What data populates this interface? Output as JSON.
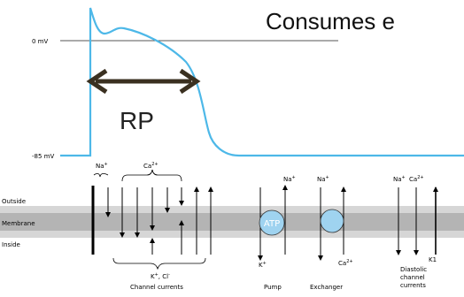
{
  "heading_partial": "Consumes e",
  "voltage_labels": {
    "zero": "0 mV",
    "rest": "-85 mV"
  },
  "refractory_label": "RP",
  "membrane_labels": {
    "outside": "Outside",
    "membrane": "Membrane",
    "inside": "Inside"
  },
  "ions": {
    "na": "Na",
    "ca": "Ca",
    "k": "K",
    "k1": "K1",
    "cl": "Cl",
    "plus": "+",
    "minus": "-",
    "two_plus": "2+",
    "kcl_sep": ", "
  },
  "pump_label": "ATP",
  "bottom_labels": {
    "channel_currents": "Channel currents",
    "pump": "Pump",
    "exchanger": "Exchanger",
    "diastolic": [
      "Diastolic",
      "channel",
      "currents"
    ]
  },
  "colors": {
    "trace": "#4DB8E8",
    "membrane_band": "#b4b4b4",
    "membrane_outer": "#d6d6d6",
    "pump_fill": "#9fd3f0",
    "arrow_dark": "#3a3020"
  }
}
